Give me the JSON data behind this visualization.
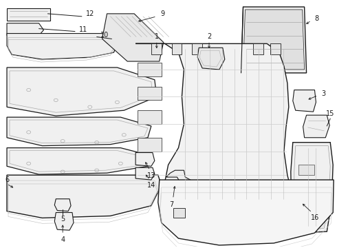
{
  "background_color": "#ffffff",
  "line_color": "#1a1a1a",
  "figsize": [
    4.9,
    3.6
  ],
  "dpi": 100
}
